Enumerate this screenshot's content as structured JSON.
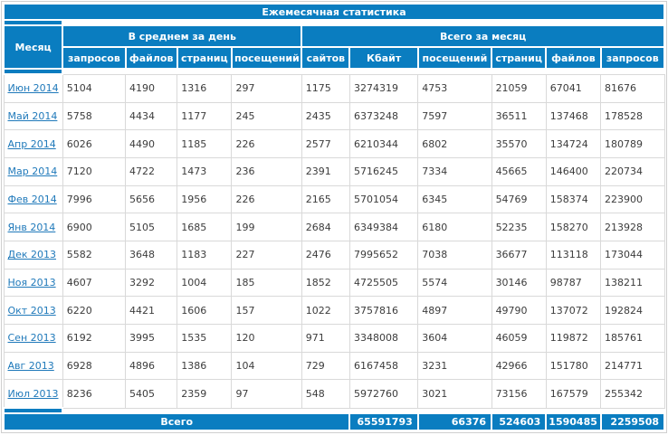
{
  "title": "Ежемесячная статистика",
  "columns": {
    "month_label": "Месяц",
    "daily_avg": {
      "label": "В среднем за день",
      "cols": [
        "запросов",
        "файлов",
        "страниц",
        "посещений"
      ]
    },
    "monthly_totals": {
      "label": "Всего за месяц",
      "cols": [
        "сайтов",
        "Кбайт",
        "посещений",
        "страниц",
        "файлов",
        "запросов"
      ]
    }
  },
  "rows": [
    {
      "month": "Июн 2014",
      "values": [
        5104,
        4190,
        1316,
        297,
        1175,
        3274319,
        4753,
        21059,
        67041,
        81676
      ]
    },
    {
      "month": "Май 2014",
      "values": [
        5758,
        4434,
        1177,
        245,
        2435,
        6373248,
        7597,
        36511,
        137468,
        178528
      ]
    },
    {
      "month": "Апр 2014",
      "values": [
        6026,
        4490,
        1185,
        226,
        2577,
        6210344,
        6802,
        35570,
        134724,
        180789
      ]
    },
    {
      "month": "Мар 2014",
      "values": [
        7120,
        4722,
        1473,
        236,
        2391,
        5716245,
        7334,
        45665,
        146400,
        220734
      ]
    },
    {
      "month": "Фев 2014",
      "values": [
        7996,
        5656,
        1956,
        226,
        2165,
        5701054,
        6345,
        54769,
        158374,
        223900
      ]
    },
    {
      "month": "Янв 2014",
      "values": [
        6900,
        5105,
        1685,
        199,
        2684,
        6349384,
        6180,
        52235,
        158270,
        213928
      ]
    },
    {
      "month": "Дек 2013",
      "values": [
        5582,
        3648,
        1183,
        227,
        2476,
        7995652,
        7038,
        36677,
        113118,
        173044
      ]
    },
    {
      "month": "Ноя 2013",
      "values": [
        4607,
        3292,
        1004,
        185,
        1852,
        4725505,
        5574,
        30146,
        98787,
        138211
      ]
    },
    {
      "month": "Окт 2013",
      "values": [
        6220,
        4421,
        1606,
        157,
        1022,
        3757816,
        4897,
        49790,
        137072,
        192824
      ]
    },
    {
      "month": "Сен 2013",
      "values": [
        6192,
        3995,
        1535,
        120,
        971,
        3348008,
        3604,
        46059,
        119872,
        185761
      ]
    },
    {
      "month": "Авг 2013",
      "values": [
        6928,
        4896,
        1386,
        104,
        729,
        6167458,
        3231,
        42966,
        151780,
        214771
      ]
    },
    {
      "month": "Июл 2013",
      "values": [
        8236,
        5405,
        2359,
        97,
        548,
        5972760,
        3021,
        73156,
        167579,
        255342
      ]
    }
  ],
  "footer": {
    "label": "Всего",
    "values": [
      65591793,
      66376,
      524603,
      1590485,
      2259508
    ]
  },
  "colors": {
    "header_blue": "#0a7dc0",
    "link_blue": "#1f79ba",
    "text_color": "#3c3c3c",
    "grid_color": "#d9d9d9",
    "background": "#ffffff"
  }
}
